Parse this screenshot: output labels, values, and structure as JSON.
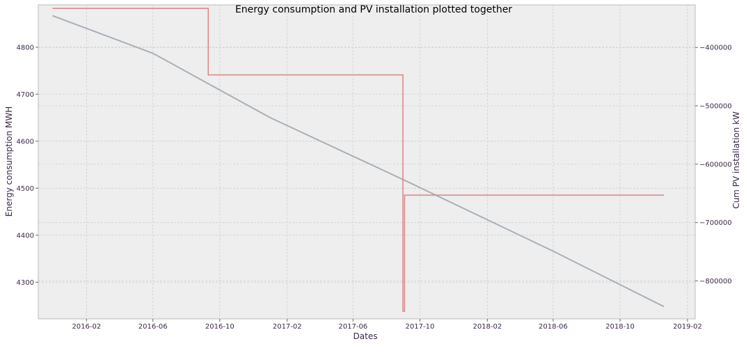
{
  "chart_data": {
    "type": "line",
    "title": "Energy consumption and PV installation plotted together",
    "xlabel": "Dates",
    "ylabel_left": "Energy consumption MWH",
    "ylabel_right": "Cum PV installation kW",
    "x_range": [
      "2015-11-05",
      "2019-02-15"
    ],
    "x_ticks": [
      "2016-02",
      "2016-06",
      "2016-10",
      "2017-02",
      "2017-06",
      "2017-10",
      "2018-02",
      "2018-06",
      "2018-10",
      "2019-02"
    ],
    "ylim_left": [
      4222,
      4890
    ],
    "yticks_left": [
      4300,
      4400,
      4500,
      4600,
      4700,
      4800
    ],
    "ylim_right": [
      -865000,
      -327000
    ],
    "yticks_right": [
      -800000,
      -700000,
      -600000,
      -500000,
      -400000
    ],
    "yticks_right_labels": [
      "−800000",
      "−700000",
      "−600000",
      "−500000",
      "−400000"
    ],
    "grid": true,
    "colors": {
      "energy": "#a8b0b8",
      "pv": "#d98a8a",
      "grid": "#cfcfcf",
      "background": "#eeeeee"
    },
    "series": [
      {
        "axis": "left",
        "style": "line",
        "points": [
          [
            "2015-12-01",
            4867
          ],
          [
            "2016-06-01",
            4787
          ],
          [
            "2017-01-01",
            4650
          ],
          [
            "2017-09-01",
            4518
          ],
          [
            "2018-06-01",
            4366
          ],
          [
            "2018-12-20",
            4248
          ]
        ]
      },
      {
        "axis": "right",
        "style": "step",
        "points": [
          [
            "2015-12-01",
            -333000
          ],
          [
            "2016-09-10",
            -333000
          ],
          [
            "2016-09-10",
            -447000
          ],
          [
            "2017-08-31",
            -447000
          ],
          [
            "2017-08-31",
            -852000
          ],
          [
            "2017-09-03",
            -852000
          ],
          [
            "2017-09-03",
            -653000
          ],
          [
            "2018-12-20",
            -653000
          ]
        ]
      }
    ]
  }
}
